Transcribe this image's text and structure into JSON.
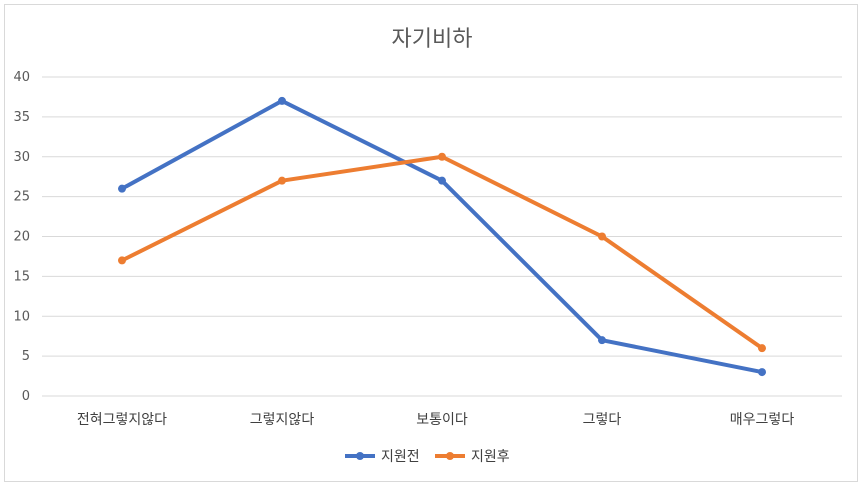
{
  "chart_data": {
    "type": "line",
    "title": "자기비하",
    "categories": [
      "전혀그렇지않다",
      "그렇지않다",
      "보통이다",
      "그렇다",
      "매우그렇다"
    ],
    "series": [
      {
        "name": "지원전",
        "values": [
          26,
          37,
          27,
          7,
          3
        ],
        "color": "#4472c4"
      },
      {
        "name": "지원후",
        "values": [
          17,
          27,
          30,
          20,
          6
        ],
        "color": "#ed7d31"
      }
    ],
    "ylim": [
      0,
      40
    ],
    "yticks": [
      0,
      5,
      10,
      15,
      20,
      25,
      30,
      35,
      40
    ],
    "grid": true,
    "legend": "bottom"
  }
}
